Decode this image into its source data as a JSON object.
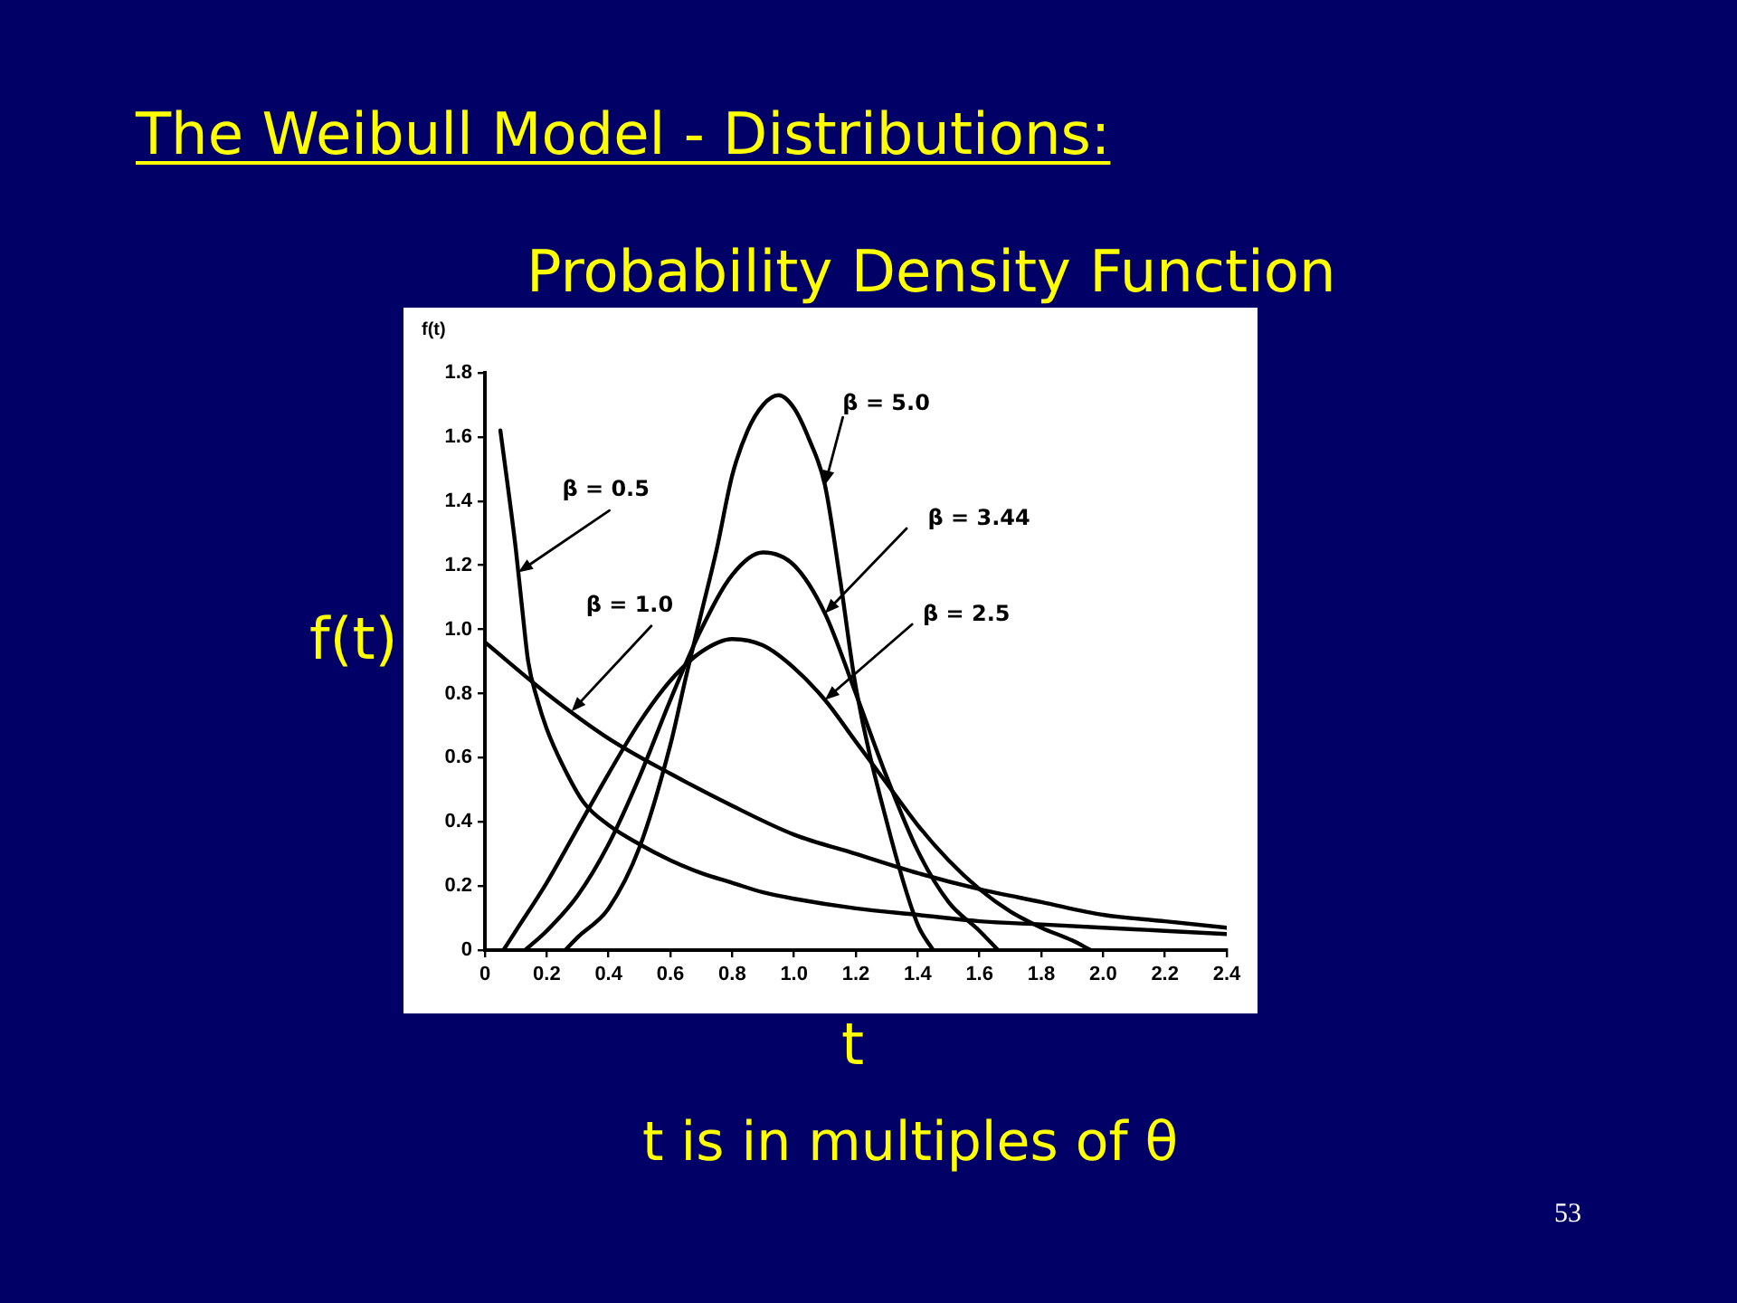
{
  "chart_data": {
    "type": "line",
    "title": "The Weibull Model - Distributions:",
    "subtitle": "Probability Density Function",
    "xlabel": "t",
    "ylabel": "f(t)",
    "annotations": [
      "f(t)",
      "t is in multiples of θ",
      "53"
    ],
    "xlim": [
      0,
      2.4
    ],
    "ylim": [
      0,
      1.8
    ],
    "xticks": [
      0,
      0.2,
      0.4,
      0.6,
      0.8,
      {
        "value": 1,
        "label": "1.0"
      },
      1.2,
      1.4,
      1.6,
      1.8,
      {
        "value": 2,
        "label": "2.0"
      },
      2.2,
      2.4
    ],
    "yticks": [
      0,
      0.2,
      0.4,
      0.6,
      0.8,
      {
        "value": 1,
        "label": "1.0"
      },
      1.2,
      1.4,
      1.6,
      1.8
    ],
    "series": [
      {
        "name": "β = 0.5",
        "color": "#000000",
        "x": [
          0.05,
          0.075,
          0.1,
          0.12,
          0.14,
          0.17,
          0.2,
          0.25,
          0.32,
          0.4,
          0.5,
          0.6,
          0.7,
          0.8,
          0.9,
          1.0,
          1.2,
          1.4,
          1.6,
          1.8,
          2.0,
          2.2,
          2.4
        ],
        "values": [
          1.62,
          1.44,
          1.25,
          1.07,
          0.9,
          0.78,
          0.69,
          0.58,
          0.46,
          0.39,
          0.33,
          0.28,
          0.24,
          0.21,
          0.18,
          0.16,
          0.13,
          0.11,
          0.09,
          0.08,
          0.07,
          0.06,
          0.05
        ]
      },
      {
        "name": "β = 1.0",
        "color": "#000000",
        "x": [
          0,
          0.2,
          0.4,
          0.6,
          0.8,
          1.0,
          1.2,
          1.4,
          1.6,
          1.8,
          2.0,
          2.2,
          2.4
        ],
        "values": [
          0.96,
          0.8,
          0.66,
          0.55,
          0.45,
          0.36,
          0.3,
          0.24,
          0.19,
          0.15,
          0.11,
          0.09,
          0.07
        ]
      },
      {
        "name": "β = 2.5",
        "color": "#000000",
        "x": [
          0.06,
          0.1,
          0.2,
          0.3,
          0.4,
          0.5,
          0.6,
          0.7,
          0.8,
          0.9,
          1.0,
          1.1,
          1.2,
          1.3,
          1.4,
          1.5,
          1.6,
          1.7,
          1.8,
          1.9,
          1.96
        ],
        "values": [
          0,
          0.06,
          0.21,
          0.38,
          0.55,
          0.71,
          0.84,
          0.93,
          0.97,
          0.95,
          0.88,
          0.78,
          0.65,
          0.52,
          0.39,
          0.28,
          0.19,
          0.12,
          0.07,
          0.03,
          0
        ]
      },
      {
        "name": "β = 3.44",
        "color": "#000000",
        "x": [
          0.13,
          0.2,
          0.3,
          0.4,
          0.5,
          0.6,
          0.7,
          0.8,
          0.9,
          1.0,
          1.1,
          1.2,
          1.3,
          1.4,
          1.5,
          1.6,
          1.66
        ],
        "values": [
          0,
          0.06,
          0.17,
          0.33,
          0.54,
          0.78,
          1.0,
          1.17,
          1.24,
          1.2,
          1.05,
          0.8,
          0.54,
          0.31,
          0.15,
          0.06,
          0
        ]
      },
      {
        "name": "β = 5.0",
        "color": "#000000",
        "x": [
          0.26,
          0.3,
          0.4,
          0.5,
          0.6,
          0.65,
          0.7,
          0.75,
          0.8,
          0.85,
          0.9,
          0.95,
          1.0,
          1.05,
          1.1,
          1.15,
          1.2,
          1.3,
          1.4,
          1.45
        ],
        "values": [
          0,
          0.04,
          0.13,
          0.32,
          0.64,
          0.85,
          1.05,
          1.25,
          1.48,
          1.62,
          1.7,
          1.73,
          1.69,
          1.59,
          1.45,
          1.15,
          0.82,
          0.4,
          0.08,
          0
        ]
      }
    ]
  }
}
